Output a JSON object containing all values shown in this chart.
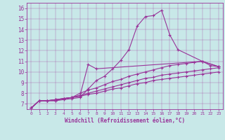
{
  "xlabel": "Windchill (Refroidissement éolien,°C)",
  "bg_color": "#c8e8e8",
  "line_color": "#993399",
  "xlim": [
    -0.5,
    23.5
  ],
  "ylim": [
    6.5,
    16.5
  ],
  "xticks": [
    0,
    1,
    2,
    3,
    4,
    5,
    6,
    7,
    8,
    9,
    10,
    11,
    12,
    13,
    14,
    15,
    16,
    17,
    18,
    19,
    20,
    21,
    22,
    23
  ],
  "yticks": [
    7,
    8,
    9,
    10,
    11,
    12,
    13,
    14,
    15,
    16
  ],
  "line1_x": [
    0,
    1,
    2,
    3,
    4,
    5,
    6,
    7,
    8,
    9,
    10,
    11,
    12,
    13,
    14,
    15,
    16,
    17,
    18,
    21,
    23
  ],
  "line1_y": [
    6.6,
    7.3,
    7.3,
    7.3,
    7.4,
    7.5,
    7.6,
    8.4,
    9.2,
    9.6,
    10.3,
    11.1,
    12.1,
    14.3,
    15.2,
    15.3,
    15.8,
    13.5,
    12.1,
    11.0,
    10.5
  ],
  "line2_x": [
    0,
    1,
    2,
    3,
    4,
    5,
    6,
    7,
    8,
    21,
    23
  ],
  "line2_y": [
    6.6,
    7.3,
    7.3,
    7.3,
    7.5,
    7.6,
    7.8,
    10.7,
    10.3,
    11.0,
    10.5
  ],
  "line3_x": [
    0,
    1,
    2,
    3,
    4,
    5,
    6,
    7,
    8,
    9,
    10,
    11,
    12,
    13,
    14,
    15,
    16,
    17,
    18,
    19,
    20,
    21,
    22,
    23
  ],
  "line3_y": [
    6.6,
    7.3,
    7.3,
    7.4,
    7.5,
    7.6,
    8.0,
    8.3,
    8.5,
    8.8,
    9.1,
    9.3,
    9.6,
    9.8,
    10.0,
    10.2,
    10.4,
    10.6,
    10.7,
    10.8,
    10.9,
    11.0,
    10.6,
    10.5
  ],
  "line4_x": [
    0,
    1,
    2,
    3,
    4,
    5,
    6,
    7,
    8,
    9,
    10,
    11,
    12,
    13,
    14,
    15,
    16,
    17,
    18,
    19,
    20,
    21,
    22,
    23
  ],
  "line4_y": [
    6.6,
    7.3,
    7.3,
    7.4,
    7.5,
    7.6,
    7.8,
    8.0,
    8.2,
    8.4,
    8.6,
    8.8,
    9.0,
    9.2,
    9.4,
    9.5,
    9.7,
    9.8,
    9.9,
    10.0,
    10.1,
    10.2,
    10.3,
    10.4
  ],
  "line5_x": [
    0,
    1,
    2,
    3,
    4,
    5,
    6,
    7,
    8,
    9,
    10,
    11,
    12,
    13,
    14,
    15,
    16,
    17,
    18,
    19,
    20,
    21,
    22,
    23
  ],
  "line5_y": [
    6.6,
    7.3,
    7.3,
    7.4,
    7.5,
    7.6,
    7.7,
    7.9,
    8.0,
    8.2,
    8.4,
    8.5,
    8.7,
    8.9,
    9.0,
    9.2,
    9.3,
    9.4,
    9.5,
    9.6,
    9.7,
    9.8,
    9.9,
    10.0
  ]
}
